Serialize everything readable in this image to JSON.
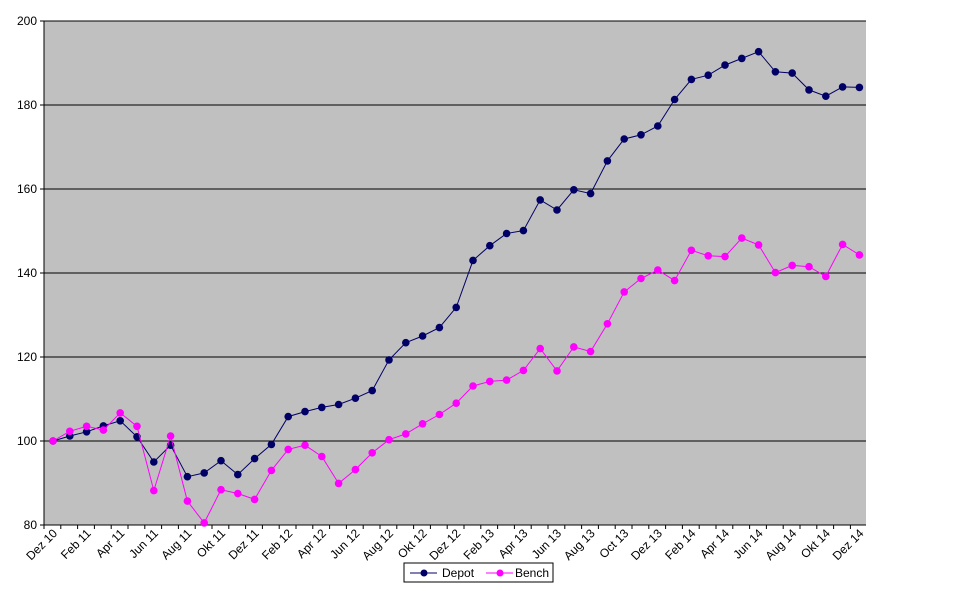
{
  "chart_data": {
    "type": "line",
    "title": "",
    "xlabel": "",
    "ylabel": "",
    "ylim": [
      80,
      200
    ],
    "yticks": [
      80,
      100,
      120,
      140,
      160,
      180,
      200
    ],
    "grid": "horizontal",
    "legend_position": "bottom-center",
    "plot_background": "#c0c0c0",
    "x": [
      "Dez 10",
      "Jan 11",
      "Feb 11",
      "Mär 11",
      "Apr 11",
      "Mai 11",
      "Jun 11",
      "Jul 11",
      "Aug 11",
      "Sep 11",
      "Okt 11",
      "Nov 11",
      "Dez 11",
      "Jan 12",
      "Feb 12",
      "Mär 12",
      "Apr 12",
      "Mai 12",
      "Jun 12",
      "Jul 12",
      "Aug 12",
      "Sep 12",
      "Okt 12",
      "Nov 12",
      "Dez 12",
      "Jan 13",
      "Feb 13",
      "Mär 13",
      "Apr 13",
      "Mai 13",
      "Jun 13",
      "Jul 13",
      "Aug 13",
      "Sep 13",
      "Oct 13",
      "Nov 13",
      "Dez 13",
      "Jan 14",
      "Feb 14",
      "Mär 14",
      "Apr 14",
      "Mai 14",
      "Jun 14",
      "Jul 14",
      "Aug 14",
      "Sep 14",
      "Okt 14",
      "Nov 14",
      "Dez 14"
    ],
    "x_tick_labels": [
      "Dez 10",
      "",
      "Feb 11",
      "",
      "Apr 11",
      "",
      "Jun 11",
      "",
      "Aug 11",
      "",
      "Okt 11",
      "",
      "Dez 11",
      "",
      "Feb 12",
      "",
      "Apr 12",
      "",
      "Jun 12",
      "",
      "Aug 12",
      "",
      "Okt 12",
      "",
      "Dez 12",
      "",
      "Feb 13",
      "",
      "Apr 13",
      "",
      "Jun 13",
      "",
      "Aug 13",
      "",
      "Oct 13",
      "",
      "Dez 13",
      "",
      "Feb 14",
      "",
      "Apr 14",
      "",
      "Jun 14",
      "",
      "Aug 14",
      "",
      "Okt 14",
      "",
      "Dez 14"
    ],
    "series": [
      {
        "name": "Depot",
        "color": "#000066",
        "values": [
          100.0,
          101.2,
          102.2,
          103.6,
          104.8,
          101.0,
          95.0,
          99.0,
          91.5,
          92.4,
          95.3,
          92.0,
          95.8,
          99.2,
          105.8,
          107.0,
          108.0,
          108.7,
          110.2,
          112.0,
          119.3,
          123.4,
          125.0,
          127.0,
          131.8,
          143.0,
          146.5,
          149.4,
          150.1,
          157.4,
          155.0,
          159.8,
          158.9,
          166.7,
          171.9,
          172.9,
          175.0,
          181.3,
          186.1,
          187.1,
          189.5,
          191.1,
          192.7,
          187.9,
          187.6,
          183.6,
          182.1,
          184.3,
          184.2
        ]
      },
      {
        "name": "Bench",
        "color": "#ff00ff",
        "values": [
          100.0,
          102.3,
          103.5,
          102.6,
          106.7,
          103.5,
          88.2,
          101.2,
          85.7,
          80.5,
          88.4,
          87.5,
          86.1,
          93.0,
          98.0,
          99.0,
          96.3,
          89.9,
          93.2,
          97.2,
          100.3,
          101.7,
          104.1,
          106.3,
          109.0,
          113.1,
          114.2,
          114.5,
          116.8,
          122.0,
          116.7,
          122.4,
          121.3,
          127.9,
          135.5,
          138.7,
          140.7,
          138.2,
          145.4,
          144.1,
          143.9,
          148.3,
          146.7,
          140.1,
          141.8,
          141.5,
          139.2,
          146.8,
          144.3
        ]
      }
    ]
  }
}
